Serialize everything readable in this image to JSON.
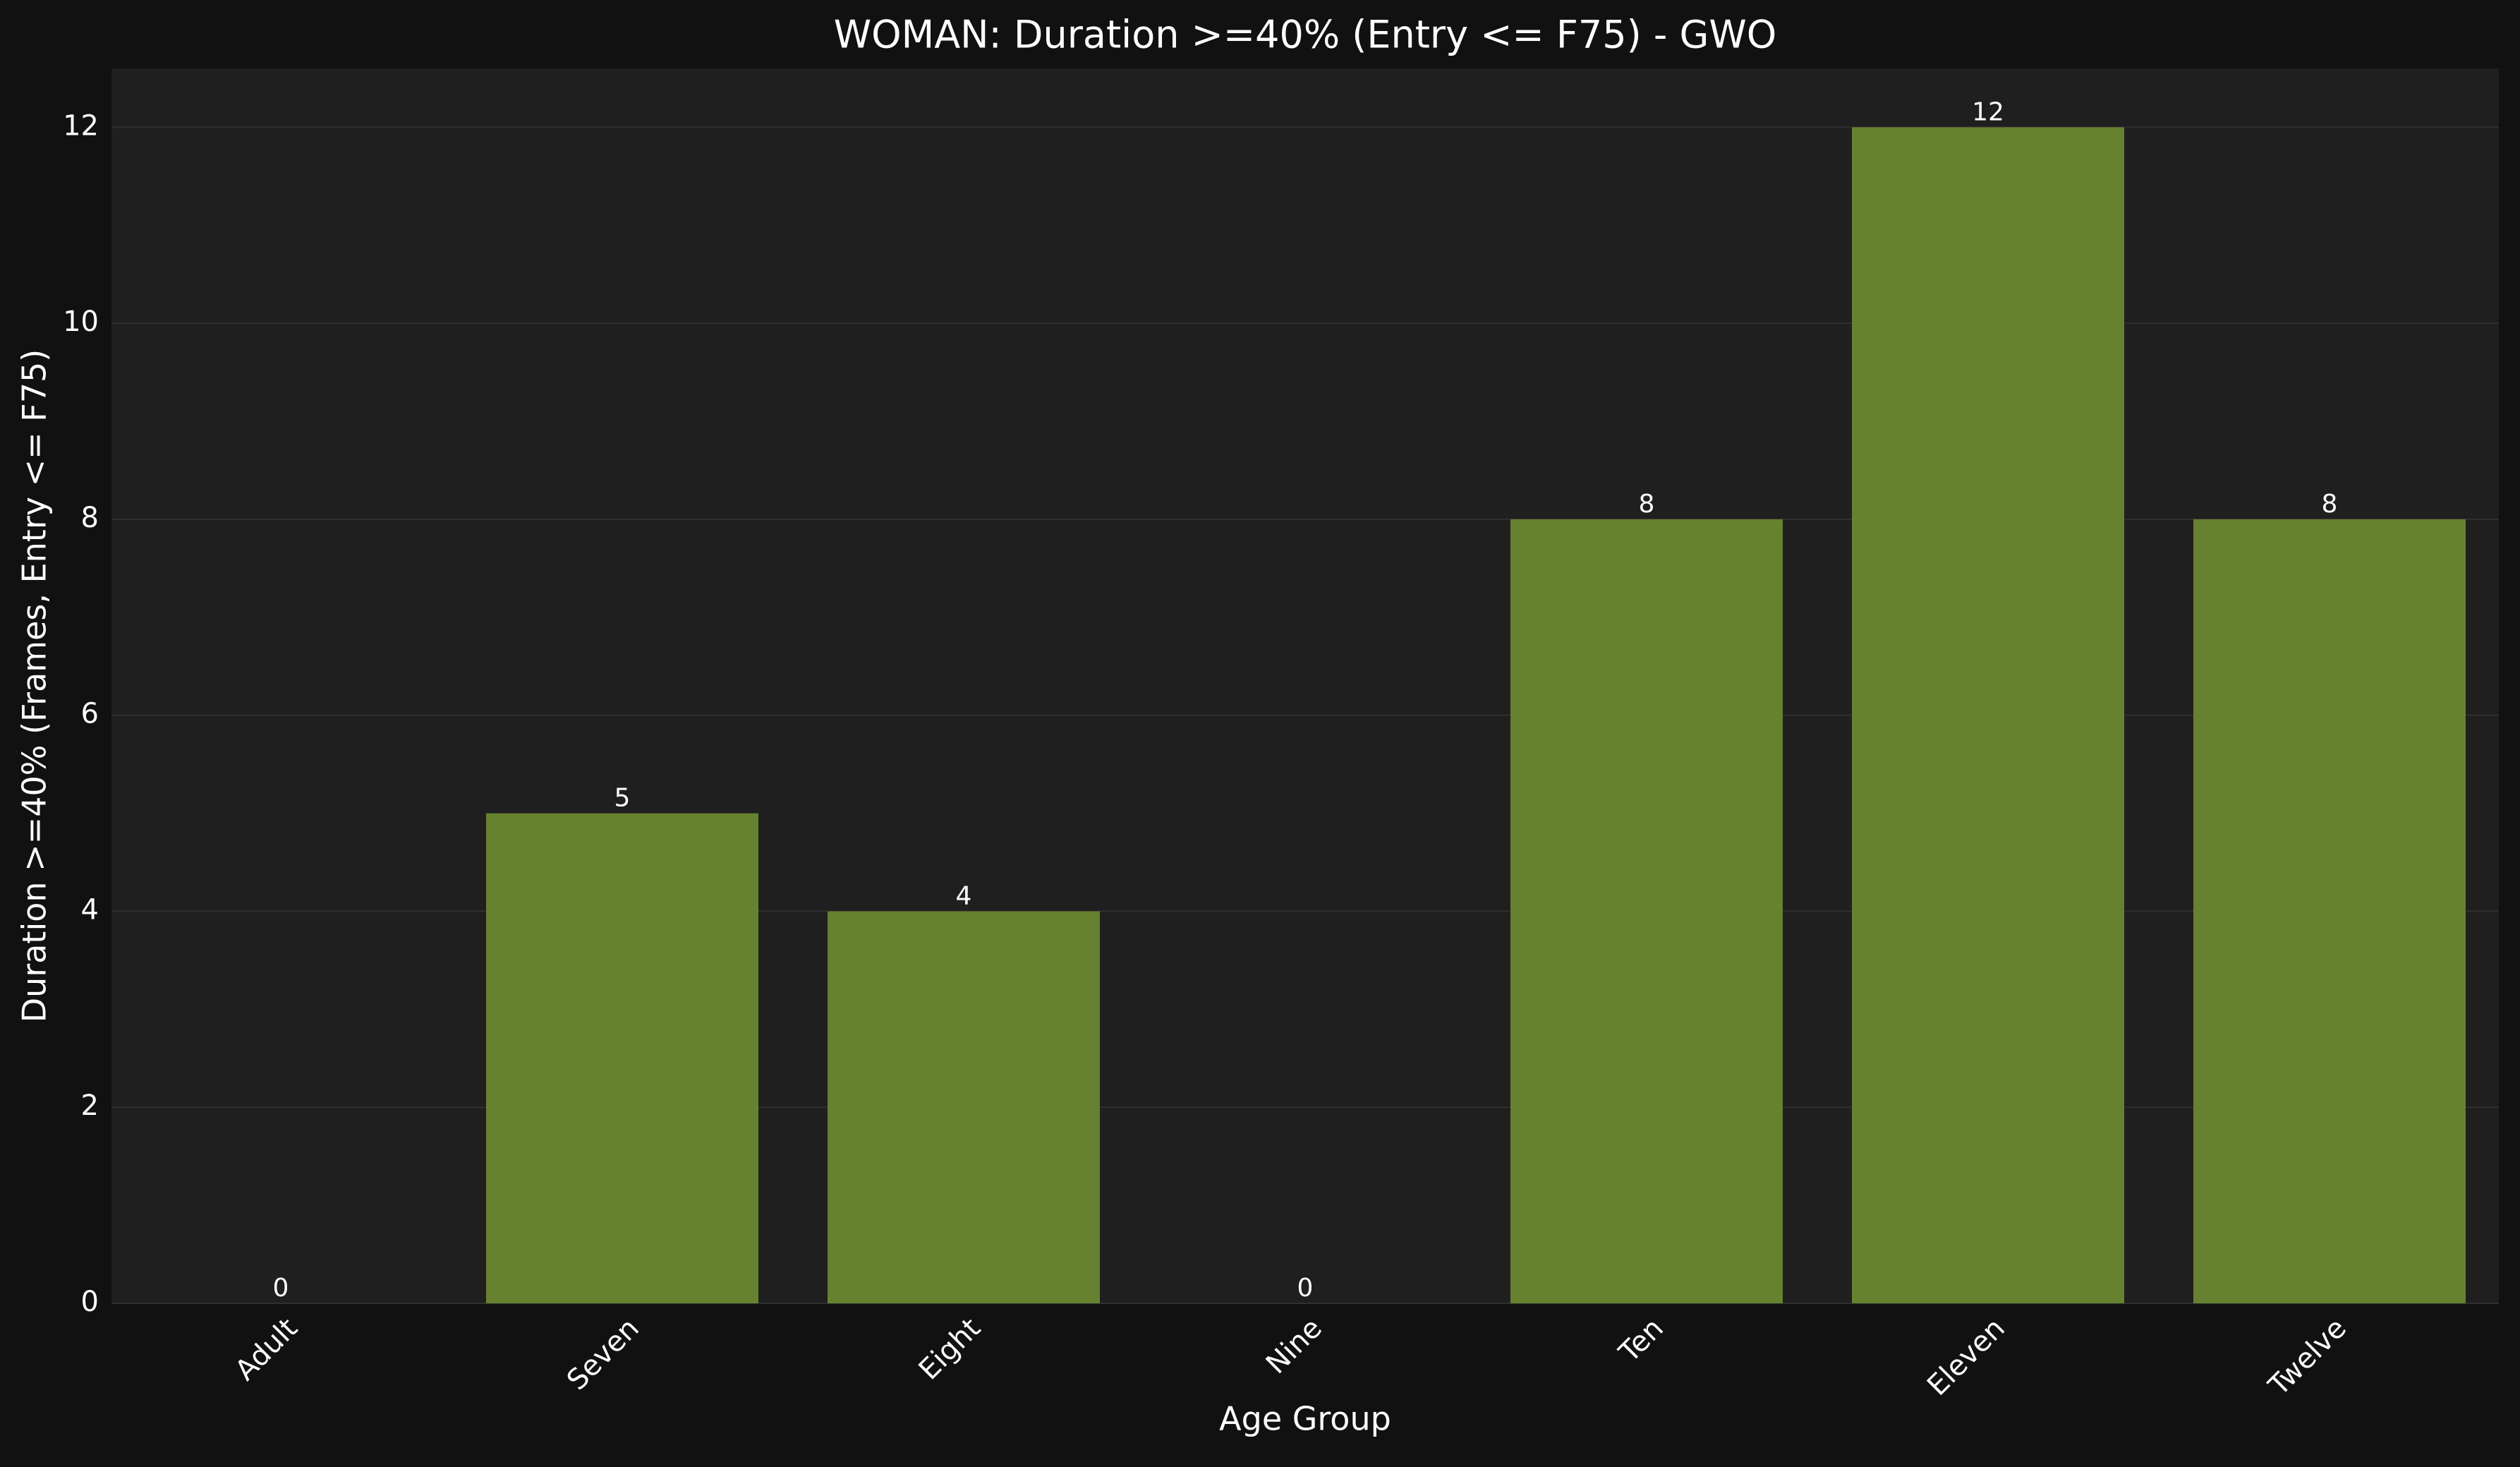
{
  "chart_data": {
    "type": "bar",
    "title": "WOMAN: Duration >=40% (Entry <= F75) - GWO",
    "xlabel": "Age Group",
    "ylabel": "Duration >=40% (Frames, Entry <= F75)",
    "categories": [
      "Adult",
      "Seven",
      "Eight",
      "Nine",
      "Ten",
      "Eleven",
      "Twelve"
    ],
    "values": [
      0,
      5,
      4,
      0,
      8,
      12,
      8
    ],
    "ylim": [
      0,
      12.6
    ],
    "yticks": [
      0,
      2,
      4,
      6,
      8,
      10,
      12
    ],
    "grid": true,
    "legend": "none",
    "colors": {
      "figure_background": "#111111",
      "plot_background": "#1f1f1f",
      "bar": "#668130",
      "grid": "#303030",
      "text": "#ffffff"
    }
  }
}
